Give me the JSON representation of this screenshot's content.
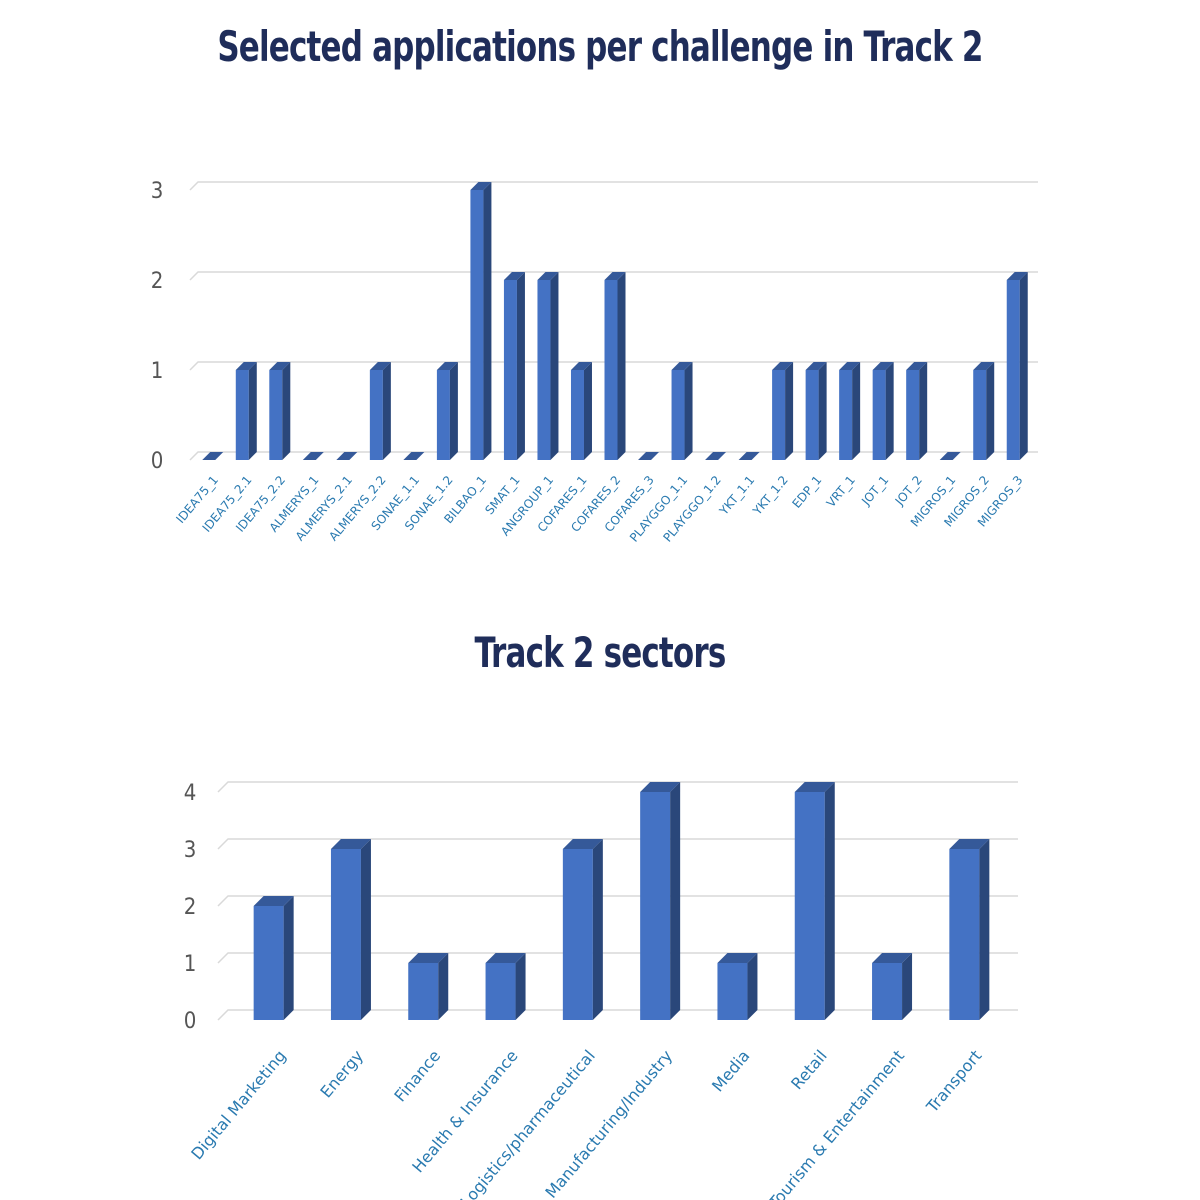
{
  "chart_data": [
    {
      "type": "bar",
      "title": "Selected applications per challenge in Track 2",
      "categories": [
        "IDEA75_1",
        "IDEA75_2.1",
        "IDEA75_2.2",
        "ALMERYS_1",
        "ALMERYS_2.1",
        "ALMERYS_2.2",
        "SONAE_1.1",
        "SONAE_1.2",
        "BILBAO_1",
        "SMAT_1",
        "ANGROUP_1",
        "COFARES_1",
        "COFARES_2",
        "COFARES_3",
        "PLAYGGO_1.1",
        "PLAYGGO_1.2",
        "YKT_1.1",
        "YKT_1.2",
        "EDP_1",
        "VRT_1",
        "JOT_1",
        "JOT_2",
        "MIGROS_1",
        "MIGROS_2",
        "MIGROS_3"
      ],
      "values": [
        0,
        1,
        1,
        0,
        0,
        1,
        0,
        1,
        3,
        2,
        2,
        1,
        2,
        0,
        1,
        0,
        0,
        1,
        1,
        1,
        1,
        1,
        0,
        1,
        2
      ],
      "yticks": [
        0,
        1,
        2,
        3
      ],
      "ylim": [
        0,
        3
      ],
      "xlabel": "",
      "ylabel": "",
      "bar_color": "#4472c4",
      "grid": true
    },
    {
      "type": "bar",
      "title": "Track 2 sectors",
      "categories": [
        "Digital Marketing",
        "Energy",
        "Finance",
        "Health & Insurance",
        "Logistics/pharmaceutical",
        "Manufacturing/Industry",
        "Media",
        "Retail",
        "Tourism & Entertainment",
        "Transport"
      ],
      "values": [
        2,
        3,
        1,
        1,
        3,
        4,
        1,
        4,
        1,
        3
      ],
      "yticks": [
        0,
        1,
        2,
        3,
        4
      ],
      "ylim": [
        0,
        4
      ],
      "xlabel": "",
      "ylabel": "",
      "bar_color": "#4472c4",
      "grid": true
    }
  ]
}
